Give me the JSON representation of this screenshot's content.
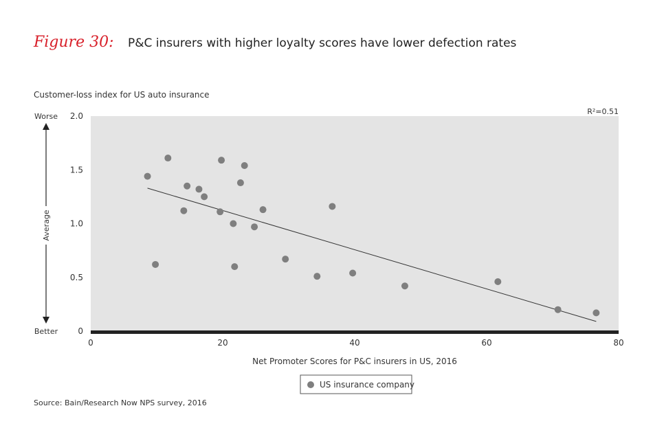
{
  "figure_label": "Figure 30:",
  "figure_title": "P&C insurers with higher loyalty scores have lower defection rates",
  "source": "Source: Bain/Research Now NPS survey, 2016",
  "chart_data": {
    "type": "scatter",
    "title": "P&C insurers with higher loyalty scores have lower defection rates",
    "ylabel": "Customer-loss index for US auto insurance",
    "xlabel": "Net Promoter Scores for P&C insurers in US, 2016",
    "xlim": [
      0,
      80
    ],
    "ylim": [
      0,
      2.0
    ],
    "x_ticks": [
      0,
      20,
      40,
      60,
      80
    ],
    "y_ticks": [
      0,
      0.5,
      1.0,
      1.5,
      2.0
    ],
    "y_tick_labels": [
      "0",
      "0.5",
      "1.0",
      "1.5",
      "2.0"
    ],
    "y_annotations": {
      "top": "Worse",
      "middle": "Average",
      "bottom": "Better"
    },
    "r_squared_label": "R²=0.51",
    "legend": {
      "label": "US insurance company",
      "placement": "bottom-center"
    },
    "series": [
      {
        "name": "US insurance company",
        "color": "#7f7f7f",
        "points": [
          {
            "x": 8.6,
            "y": 1.44
          },
          {
            "x": 11.7,
            "y": 1.61
          },
          {
            "x": 9.8,
            "y": 0.62
          },
          {
            "x": 14.1,
            "y": 1.12
          },
          {
            "x": 14.6,
            "y": 1.35
          },
          {
            "x": 16.4,
            "y": 1.32
          },
          {
            "x": 17.2,
            "y": 1.25
          },
          {
            "x": 19.6,
            "y": 1.11
          },
          {
            "x": 19.8,
            "y": 1.59
          },
          {
            "x": 21.6,
            "y": 1.0
          },
          {
            "x": 21.8,
            "y": 0.6
          },
          {
            "x": 22.7,
            "y": 1.38
          },
          {
            "x": 23.3,
            "y": 1.54
          },
          {
            "x": 24.8,
            "y": 0.97
          },
          {
            "x": 26.1,
            "y": 1.13
          },
          {
            "x": 29.5,
            "y": 0.67
          },
          {
            "x": 34.3,
            "y": 0.51
          },
          {
            "x": 36.6,
            "y": 1.16
          },
          {
            "x": 39.7,
            "y": 0.54
          },
          {
            "x": 47.6,
            "y": 0.42
          },
          {
            "x": 61.7,
            "y": 0.46
          },
          {
            "x": 70.8,
            "y": 0.2
          },
          {
            "x": 76.6,
            "y": 0.17
          }
        ]
      }
    ],
    "trendline": {
      "x": [
        8.6,
        76.6
      ],
      "y": [
        1.33,
        0.09
      ]
    },
    "colors": {
      "plot_bg": "#e4e4e4",
      "marker": "#7f7f7f",
      "axis": "#222222",
      "accent": "#d8202a"
    }
  }
}
